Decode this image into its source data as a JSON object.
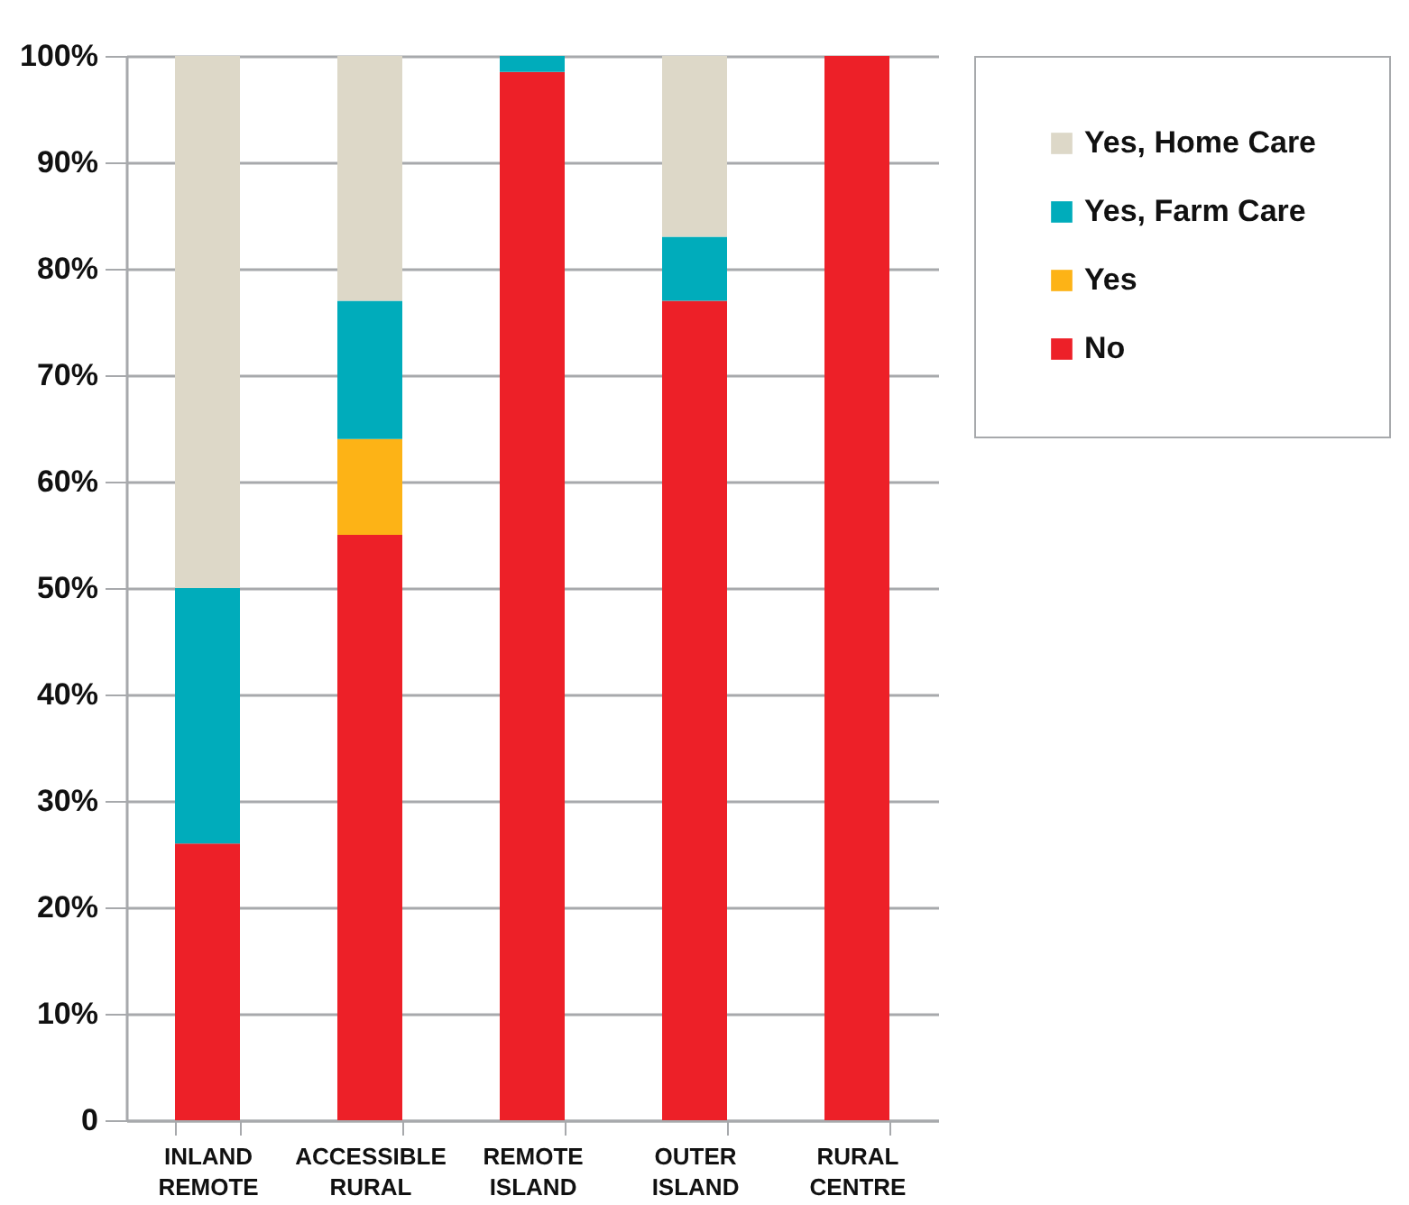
{
  "chart_data": {
    "type": "bar",
    "stacked": true,
    "categories": [
      "INLAND REMOTE",
      "ACCESSIBLE RURAL",
      "REMOTE ISLAND",
      "OUTER ISLAND",
      "RURAL CENTRE"
    ],
    "series": [
      {
        "name": "No",
        "color": "#ed2028",
        "values": [
          26,
          55,
          98.5,
          77,
          100
        ]
      },
      {
        "name": "Yes",
        "color": "#fdb316",
        "values": [
          0,
          9,
          0,
          0,
          0
        ]
      },
      {
        "name": "Yes, Farm Care",
        "color": "#00acbb",
        "values": [
          24,
          13,
          1.5,
          6,
          0
        ]
      },
      {
        "name": "Yes, Home Care",
        "color": "#ddd8c8",
        "values": [
          50,
          23,
          0,
          17,
          0
        ]
      }
    ],
    "ylim": [
      0,
      100
    ],
    "yticks": [
      0,
      {
        "value": 10,
        "label": "10%"
      },
      {
        "value": 20,
        "label": "20%"
      },
      {
        "value": 30,
        "label": "30%"
      },
      {
        "value": 40,
        "label": "40%"
      },
      {
        "value": 50,
        "label": "50%"
      },
      {
        "value": 60,
        "label": "60%"
      },
      {
        "value": 70,
        "label": "70%"
      },
      {
        "value": 80,
        "label": "80%"
      },
      {
        "value": 90,
        "label": "90%"
      },
      {
        "value": 100,
        "label": "100%"
      }
    ],
    "grid": "y",
    "legend": "right"
  }
}
